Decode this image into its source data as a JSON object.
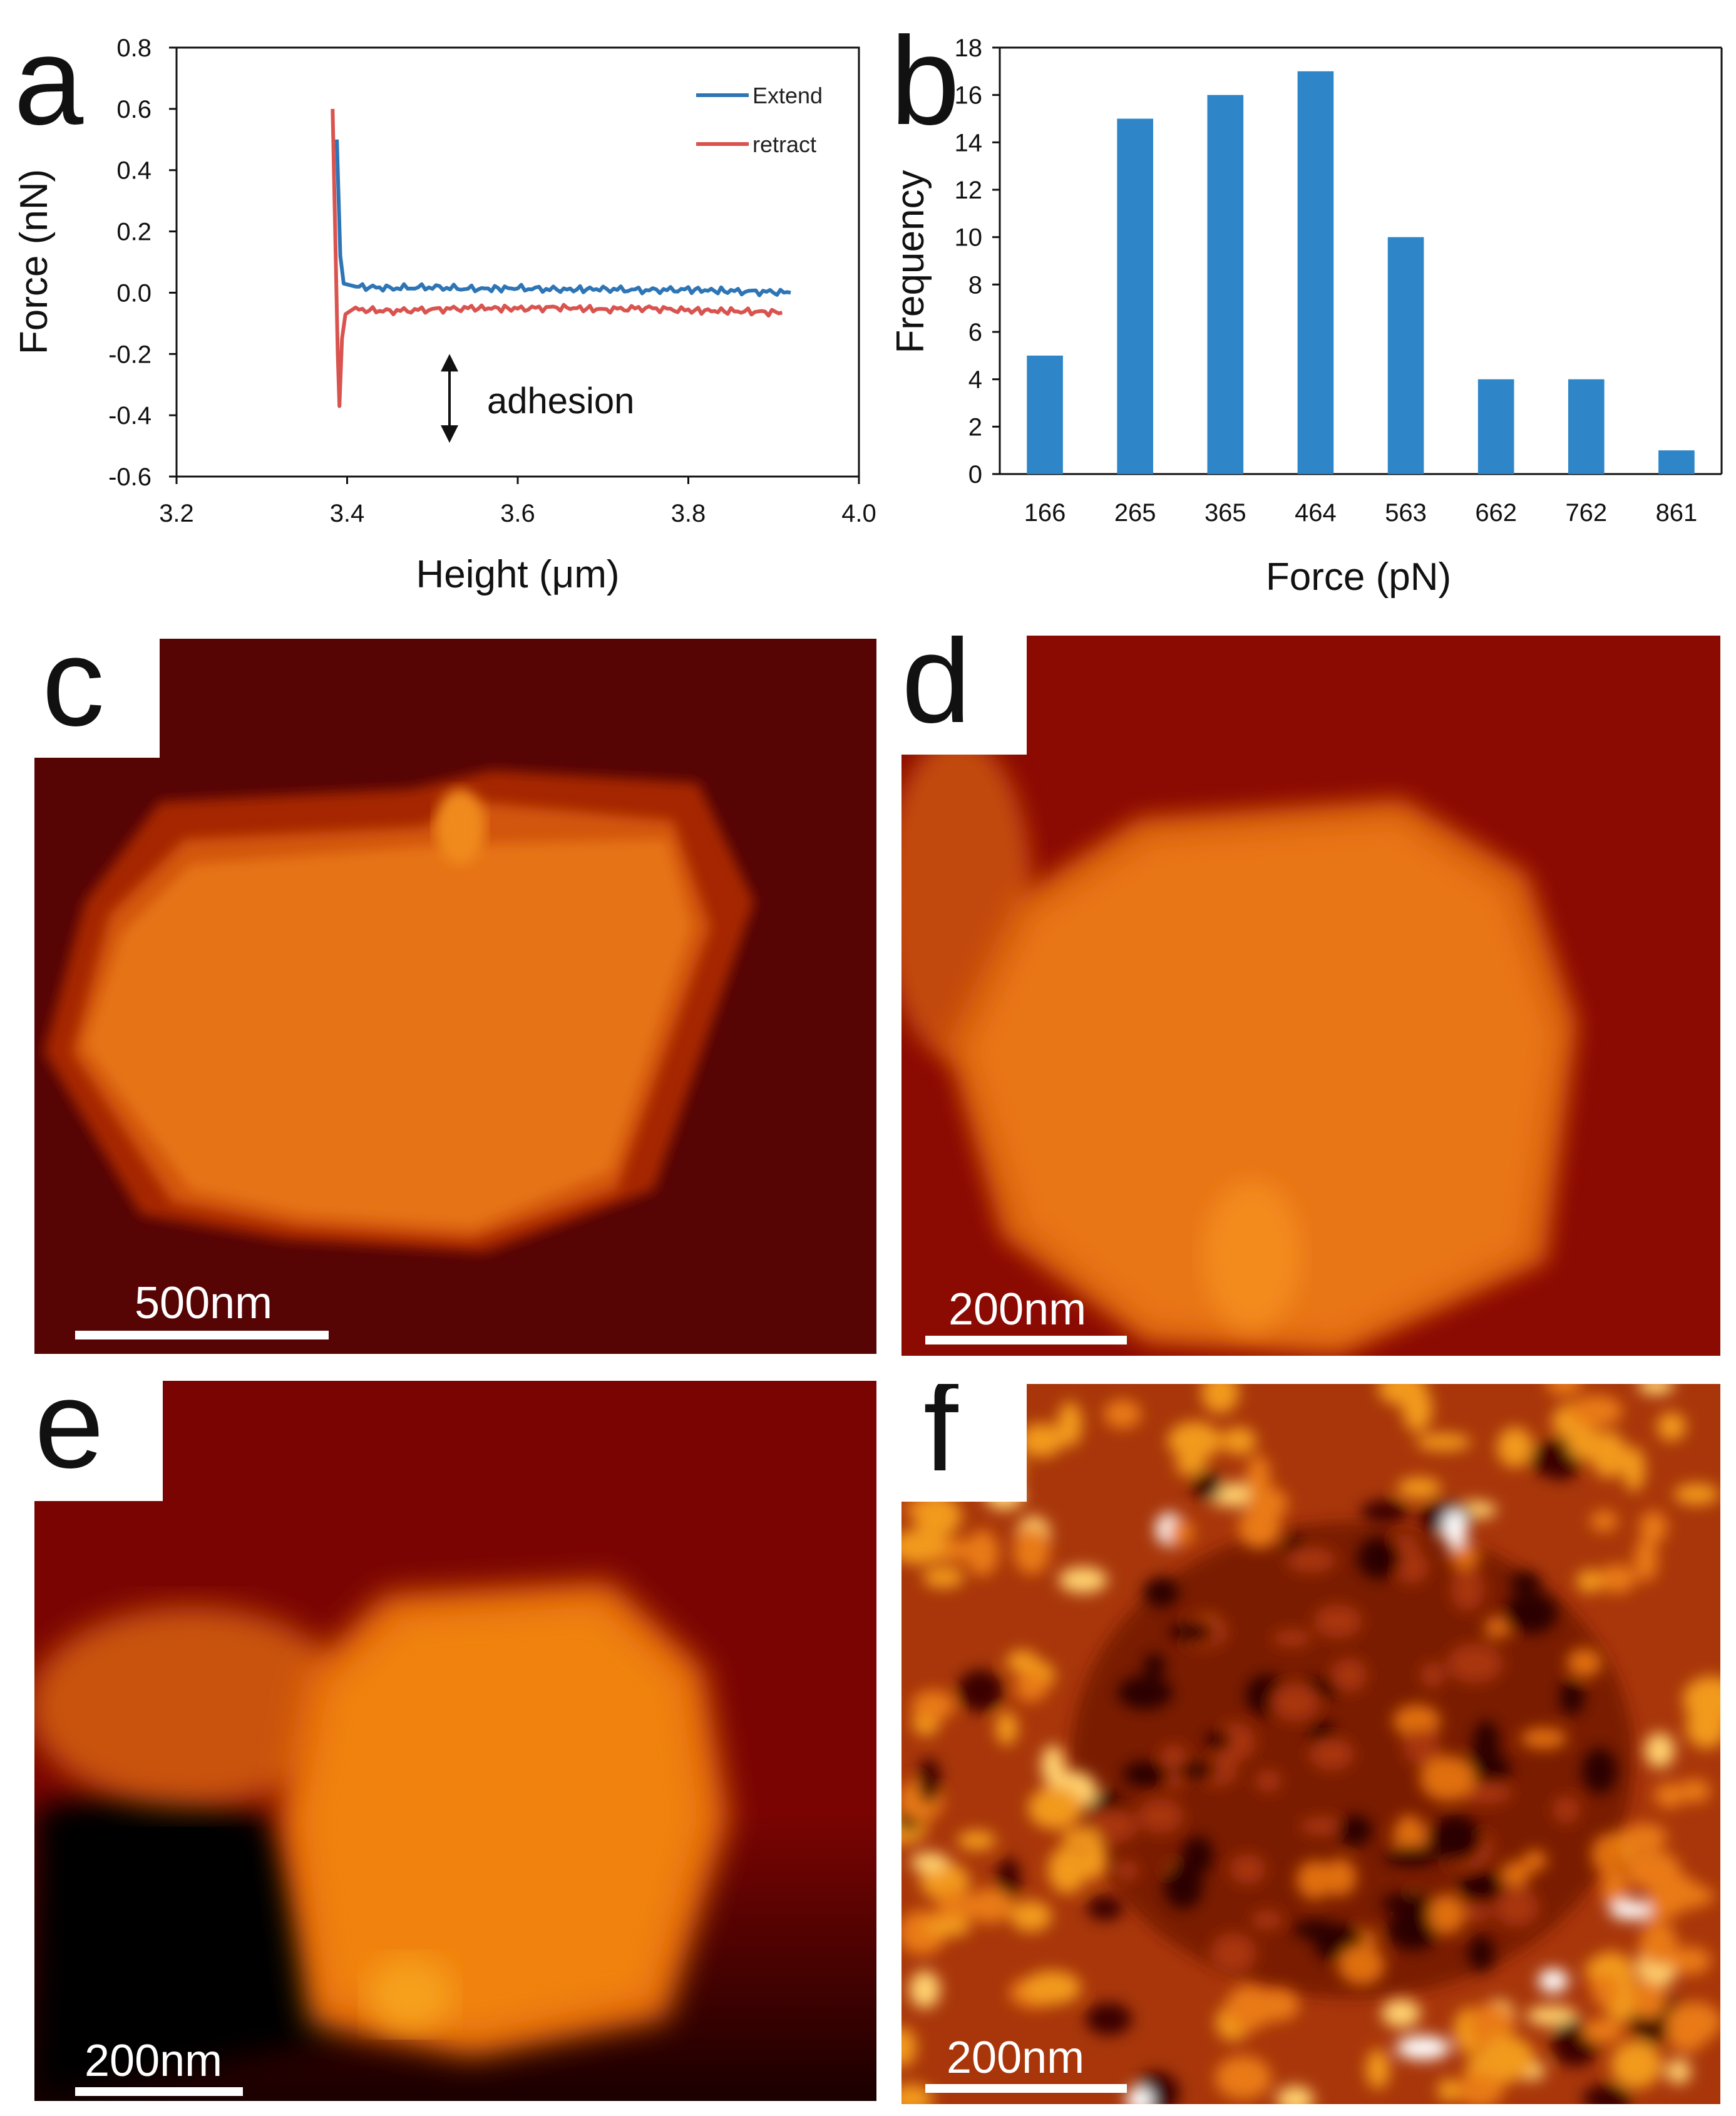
{
  "panel_labels": [
    "a",
    "b",
    "c",
    "d",
    "e",
    "f"
  ],
  "chart_data": [
    {
      "type": "line",
      "xlabel": "Height (μm)",
      "ylabel": "Force (nN)",
      "xlim": [
        3.2,
        4.0
      ],
      "ylim": [
        -0.6,
        0.8
      ],
      "xticks": [
        "3.2",
        "3.4",
        "3.6",
        "3.8",
        "4.0"
      ],
      "yticks": [
        "-0.6",
        "-0.4",
        "-0.2",
        "0.0",
        "0.2",
        "0.4",
        "0.6",
        "0.8"
      ],
      "annotation": "adhesion",
      "annotation_arrow": {
        "x": 3.52,
        "y_from": -0.2,
        "y_to": -0.49
      },
      "legend": "top-right",
      "grid": false,
      "series": [
        {
          "name": "Extend",
          "color": "#2e75b6",
          "points": [
            [
              3.388,
              0.5
            ],
            [
              3.392,
              0.12
            ],
            [
              3.396,
              0.03
            ],
            [
              3.41,
              0.02
            ],
            [
              3.45,
              0.015
            ],
            [
              3.5,
              0.018
            ],
            [
              3.55,
              0.012
            ],
            [
              3.6,
              0.015
            ],
            [
              3.65,
              0.01
            ],
            [
              3.7,
              0.012
            ],
            [
              3.75,
              0.008
            ],
            [
              3.8,
              0.01
            ],
            [
              3.85,
              0.005
            ],
            [
              3.9,
              0.002
            ],
            [
              3.92,
              0.0
            ]
          ]
        },
        {
          "name": "retract",
          "color": "#d9534f",
          "points": [
            [
              3.383,
              0.6
            ],
            [
              3.386,
              0.2
            ],
            [
              3.389,
              -0.2
            ],
            [
              3.391,
              -0.37
            ],
            [
              3.394,
              -0.15
            ],
            [
              3.398,
              -0.07
            ],
            [
              3.41,
              -0.055
            ],
            [
              3.45,
              -0.06
            ],
            [
              3.5,
              -0.055
            ],
            [
              3.55,
              -0.05
            ],
            [
              3.6,
              -0.052
            ],
            [
              3.65,
              -0.048
            ],
            [
              3.7,
              -0.055
            ],
            [
              3.75,
              -0.05
            ],
            [
              3.8,
              -0.058
            ],
            [
              3.85,
              -0.06
            ],
            [
              3.91,
              -0.065
            ]
          ]
        }
      ]
    },
    {
      "type": "bar",
      "xlabel": "Force (pN)",
      "ylabel": "Frequency",
      "ylim": [
        0,
        18
      ],
      "yticks": [
        "0",
        "2",
        "4",
        "6",
        "8",
        "10",
        "12",
        "14",
        "16",
        "18"
      ],
      "categories": [
        "166",
        "265",
        "365",
        "464",
        "563",
        "662",
        "762",
        "861"
      ],
      "values": [
        5,
        15,
        16,
        17,
        10,
        4,
        4,
        1
      ],
      "color": "#2e86c8",
      "grid": false
    }
  ],
  "images": {
    "c": {
      "scalebar": "500nm"
    },
    "d": {
      "scalebar": "200nm"
    },
    "e": {
      "scalebar": "200nm"
    },
    "f": {
      "scalebar": "200nm"
    }
  }
}
